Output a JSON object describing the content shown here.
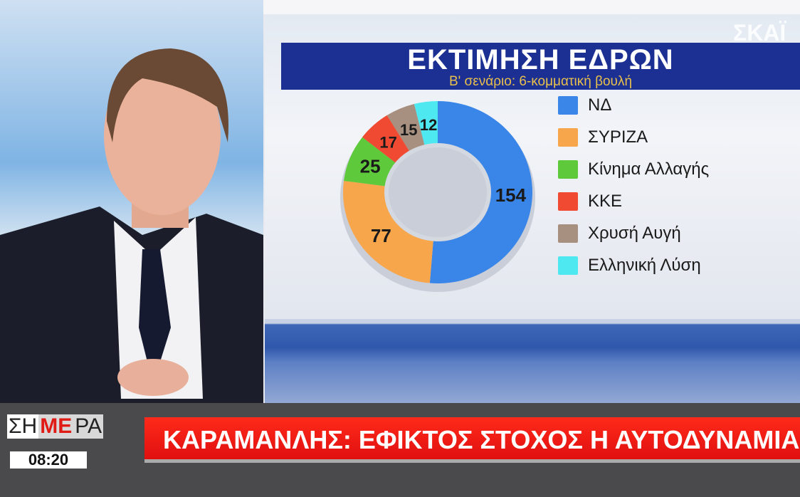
{
  "channel_logo": "ΣΚΑΪ",
  "chart_data": {
    "type": "pie",
    "donut": true,
    "title": "ΕΚΤΙΜΗΣΗ ΕΔΡΩΝ",
    "subtitle": "Β' σενάριο: 6-κομματική βουλή",
    "legend_position": "right",
    "slices": [
      {
        "name": "ΝΔ",
        "value": 154,
        "color": "#3a86e8"
      },
      {
        "name": "ΣΥΡΙΖΑ",
        "value": 77,
        "color": "#f7a64c"
      },
      {
        "name": "Κίνημα Αλλαγής",
        "value": 25,
        "color": "#5ec93a"
      },
      {
        "name": "ΚΚΕ",
        "value": 17,
        "color": "#f04a32"
      },
      {
        "name": "Χρυσή Αυγή",
        "value": 15,
        "color": "#a89080"
      },
      {
        "name": "Ελληνική Λύση",
        "value": 12,
        "color": "#4ee8f0"
      }
    ]
  },
  "lower_third": {
    "show_name_parts": [
      "ΣΗ",
      "ΜΕ",
      "ΡΑ"
    ],
    "time": "08:20",
    "headline": "ΚΑΡΑΜΑΝΛΗΣ: ΕΦΙΚΤΟΣ ΣΤΟΧΟΣ Η ΑΥΤΟΔΥΝΑΜΙΑ"
  }
}
